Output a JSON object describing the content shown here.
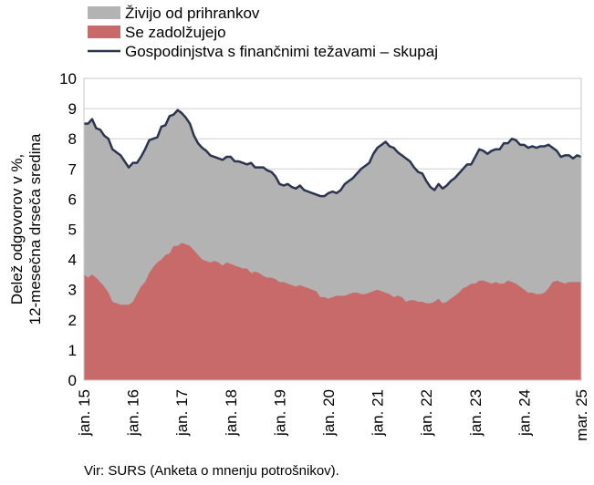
{
  "chart_data": {
    "type": "area",
    "ylabel_lines": [
      "Delež odgovorov v %,",
      "12-mesečna drseča sredina"
    ],
    "ylim": [
      0,
      10
    ],
    "yticks": [
      0,
      1,
      2,
      3,
      4,
      5,
      6,
      7,
      8,
      9,
      10
    ],
    "grid": true,
    "legend_position": "top-left",
    "x_tick_labels": [
      "jan. 15",
      "jan. 16",
      "jan. 17",
      "jan. 18",
      "jan. 19",
      "jan. 20",
      "jan. 21",
      "jan. 22",
      "jan. 23",
      "jan. 24",
      "mar. 25"
    ],
    "x_tick_index": [
      0,
      12,
      24,
      36,
      48,
      60,
      72,
      84,
      96,
      108,
      122
    ],
    "x_start": "2015-01",
    "x_end": "2025-03",
    "series": [
      {
        "name": "Živijo od prihrankov",
        "kind": "area",
        "color": "#b3b3b3",
        "values": [
          8.5,
          8.5,
          8.65,
          8.35,
          8.3,
          8.1,
          8.0,
          7.65,
          7.55,
          7.45,
          7.25,
          7.05,
          7.2,
          7.2,
          7.4,
          7.65,
          7.95,
          8.0,
          8.05,
          8.4,
          8.45,
          8.75,
          8.8,
          8.95,
          8.85,
          8.7,
          8.5,
          8.1,
          7.85,
          7.7,
          7.6,
          7.45,
          7.4,
          7.35,
          7.3,
          7.4,
          7.4,
          7.25,
          7.25,
          7.2,
          7.15,
          7.2,
          7.05,
          7.05,
          7.05,
          6.95,
          6.9,
          6.75,
          6.5,
          6.45,
          6.5,
          6.4,
          6.35,
          6.45,
          6.3,
          6.25,
          6.2,
          6.15,
          6.1,
          6.1,
          6.2,
          6.25,
          6.2,
          6.3,
          6.5,
          6.6,
          6.7,
          6.85,
          7.0,
          7.1,
          7.2,
          7.5,
          7.7,
          7.8,
          7.9,
          7.75,
          7.7,
          7.55,
          7.45,
          7.35,
          7.25,
          7.05,
          6.9,
          6.85,
          6.6,
          6.4,
          6.3,
          6.5,
          6.35,
          6.45,
          6.6,
          6.7,
          6.85,
          7.0,
          7.15,
          7.15,
          7.4,
          7.65,
          7.6,
          7.5,
          7.6,
          7.65,
          7.65,
          7.85,
          7.85,
          8.0,
          7.95,
          7.8,
          7.8,
          7.7,
          7.75,
          7.7,
          7.75,
          7.75,
          7.8,
          7.7,
          7.6,
          7.4,
          7.45,
          7.45,
          7.35,
          7.45,
          7.4
        ]
      },
      {
        "name": "Se zadolžujejo",
        "kind": "area",
        "color": "#c96a6a",
        "values": [
          3.5,
          3.4,
          3.5,
          3.4,
          3.25,
          3.1,
          2.9,
          2.6,
          2.55,
          2.5,
          2.5,
          2.5,
          2.6,
          2.85,
          3.1,
          3.25,
          3.55,
          3.75,
          3.9,
          4.0,
          4.15,
          4.2,
          4.45,
          4.45,
          4.55,
          4.5,
          4.45,
          4.3,
          4.15,
          4.0,
          3.95,
          3.9,
          3.95,
          3.9,
          3.8,
          3.9,
          3.85,
          3.8,
          3.75,
          3.7,
          3.7,
          3.55,
          3.6,
          3.55,
          3.45,
          3.4,
          3.4,
          3.35,
          3.25,
          3.25,
          3.2,
          3.15,
          3.1,
          3.15,
          3.1,
          3.05,
          3.0,
          2.95,
          2.75,
          2.75,
          2.7,
          2.75,
          2.8,
          2.8,
          2.8,
          2.85,
          2.9,
          2.9,
          2.85,
          2.85,
          2.9,
          2.95,
          3.0,
          2.95,
          2.9,
          2.85,
          2.75,
          2.8,
          2.75,
          2.6,
          2.65,
          2.65,
          2.6,
          2.6,
          2.55,
          2.55,
          2.6,
          2.7,
          2.55,
          2.6,
          2.7,
          2.8,
          2.9,
          3.05,
          3.1,
          3.2,
          3.2,
          3.3,
          3.3,
          3.25,
          3.2,
          3.25,
          3.2,
          3.2,
          3.3,
          3.25,
          3.2,
          3.1,
          3.0,
          2.9,
          2.9,
          2.85,
          2.85,
          2.9,
          3.05,
          3.25,
          3.3,
          3.25,
          3.2,
          3.25,
          3.25,
          3.25,
          3.25
        ]
      },
      {
        "name": "Gospodinjstva s finančnimi težavami – skupaj",
        "kind": "line",
        "color": "#2b3551",
        "values": [
          8.5,
          8.5,
          8.65,
          8.35,
          8.3,
          8.1,
          8.0,
          7.65,
          7.55,
          7.45,
          7.25,
          7.05,
          7.2,
          7.2,
          7.4,
          7.65,
          7.95,
          8.0,
          8.05,
          8.4,
          8.45,
          8.75,
          8.8,
          8.95,
          8.85,
          8.7,
          8.5,
          8.1,
          7.85,
          7.7,
          7.6,
          7.45,
          7.4,
          7.35,
          7.3,
          7.4,
          7.4,
          7.25,
          7.25,
          7.2,
          7.15,
          7.2,
          7.05,
          7.05,
          7.05,
          6.95,
          6.9,
          6.75,
          6.5,
          6.45,
          6.5,
          6.4,
          6.35,
          6.45,
          6.3,
          6.25,
          6.2,
          6.15,
          6.1,
          6.1,
          6.2,
          6.25,
          6.2,
          6.3,
          6.5,
          6.6,
          6.7,
          6.85,
          7.0,
          7.1,
          7.2,
          7.5,
          7.7,
          7.8,
          7.9,
          7.75,
          7.7,
          7.55,
          7.45,
          7.35,
          7.25,
          7.05,
          6.9,
          6.85,
          6.6,
          6.4,
          6.3,
          6.5,
          6.35,
          6.45,
          6.6,
          6.7,
          6.85,
          7.0,
          7.15,
          7.15,
          7.4,
          7.65,
          7.6,
          7.5,
          7.6,
          7.65,
          7.65,
          7.85,
          7.85,
          8.0,
          7.95,
          7.8,
          7.8,
          7.7,
          7.75,
          7.7,
          7.75,
          7.75,
          7.8,
          7.7,
          7.6,
          7.4,
          7.45,
          7.45,
          7.35,
          7.45,
          7.4
        ]
      }
    ],
    "source": "Vir: SURS (Anketa o mnenju potrošnikov)."
  }
}
